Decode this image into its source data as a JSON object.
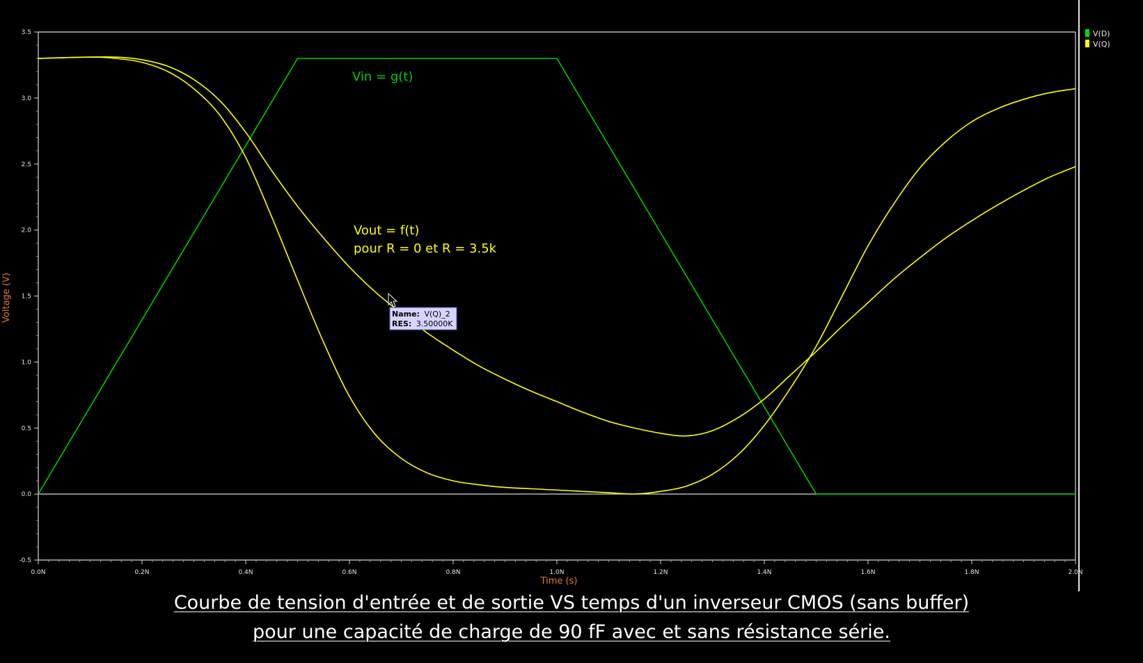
{
  "chart_data": {
    "type": "line",
    "xlabel": "Time (s)",
    "ylabel": "Voltage (V)",
    "xlim": [
      0,
      2.0
    ],
    "ylim": [
      -0.5,
      3.5
    ],
    "x_ticks": [
      {
        "v": 0.0,
        "label": "0.0N"
      },
      {
        "v": 0.2,
        "label": "0.2N"
      },
      {
        "v": 0.4,
        "label": "0.4N"
      },
      {
        "v": 0.6,
        "label": "0.6N"
      },
      {
        "v": 0.8,
        "label": "0.8N"
      },
      {
        "v": 1.0,
        "label": "1.0N"
      },
      {
        "v": 1.2,
        "label": "1.2N"
      },
      {
        "v": 1.4,
        "label": "1.4N"
      },
      {
        "v": 1.6,
        "label": "1.6N"
      },
      {
        "v": 1.8,
        "label": "1.8N"
      },
      {
        "v": 2.0,
        "label": "2.0N"
      }
    ],
    "y_ticks": [
      {
        "v": 3.5,
        "label": "3.5"
      },
      {
        "v": 3.0,
        "label": "3.0"
      },
      {
        "v": 2.5,
        "label": "2.5"
      },
      {
        "v": 2.0,
        "label": "2.0"
      },
      {
        "v": 1.5,
        "label": "1.5"
      },
      {
        "v": 1.0,
        "label": "1.0"
      },
      {
        "v": 0.5,
        "label": "0.5"
      },
      {
        "v": 0.0,
        "label": "0.0"
      },
      {
        "v": -0.5,
        "label": "-0.5"
      }
    ],
    "legend": [
      {
        "label": "V(D)",
        "color": "#00e000"
      },
      {
        "label": "V(Q)",
        "color": "#ffff00"
      }
    ],
    "legend_placement": "right",
    "series": [
      {
        "name": "V(D)",
        "color": "#00cc00",
        "x": [
          0.0,
          0.5,
          1.0,
          1.5,
          2.0
        ],
        "y": [
          0.0,
          3.3,
          3.3,
          0.0,
          0.0
        ]
      },
      {
        "name": "V(Q)",
        "color": "#ffff00",
        "x": [
          0.0,
          0.1,
          0.15,
          0.2,
          0.25,
          0.3,
          0.35,
          0.4,
          0.45,
          0.5,
          0.55,
          0.6,
          0.65,
          0.7,
          0.75,
          0.8,
          0.85,
          0.9,
          0.95,
          1.0,
          1.05,
          1.1,
          1.15,
          1.2,
          1.25,
          1.3,
          1.35,
          1.4,
          1.45,
          1.5,
          1.55,
          1.6,
          1.65,
          1.7,
          1.75,
          1.8,
          1.85,
          1.9,
          1.95,
          2.0
        ],
        "y": [
          3.3,
          3.31,
          3.3,
          3.27,
          3.2,
          3.07,
          2.87,
          2.55,
          2.1,
          1.62,
          1.15,
          0.74,
          0.45,
          0.27,
          0.16,
          0.1,
          0.07,
          0.05,
          0.04,
          0.03,
          0.02,
          0.01,
          0.0,
          0.02,
          0.06,
          0.15,
          0.3,
          0.52,
          0.8,
          1.12,
          1.5,
          1.88,
          2.2,
          2.47,
          2.67,
          2.82,
          2.92,
          2.99,
          3.04,
          3.07
        ]
      },
      {
        "name": "V(Q)_2",
        "color": "#ffff00",
        "x": [
          0.0,
          0.1,
          0.15,
          0.2,
          0.25,
          0.3,
          0.35,
          0.4,
          0.45,
          0.5,
          0.55,
          0.6,
          0.65,
          0.7,
          0.75,
          0.8,
          0.85,
          0.9,
          0.95,
          1.0,
          1.05,
          1.1,
          1.15,
          1.2,
          1.25,
          1.3,
          1.35,
          1.4,
          1.45,
          1.5,
          1.55,
          1.6,
          1.65,
          1.7,
          1.75,
          1.8,
          1.85,
          1.9,
          1.95,
          2.0
        ],
        "y": [
          3.3,
          3.31,
          3.31,
          3.29,
          3.24,
          3.14,
          2.98,
          2.74,
          2.45,
          2.18,
          1.94,
          1.72,
          1.53,
          1.37,
          1.22,
          1.09,
          0.97,
          0.87,
          0.78,
          0.7,
          0.62,
          0.55,
          0.5,
          0.46,
          0.44,
          0.48,
          0.58,
          0.72,
          0.9,
          1.08,
          1.27,
          1.45,
          1.63,
          1.79,
          1.94,
          2.07,
          2.19,
          2.3,
          2.4,
          2.48
        ]
      }
    ],
    "annotations": {
      "vin": "Vin = g(t)",
      "vout_line1": "Vout = f(t)",
      "vout_line2": "pour R = 0 et R = 3.5k"
    },
    "tooltip": {
      "name_key": "Name:",
      "name_value": "V(Q)_2",
      "res_key": "RES:",
      "res_value": "3.50000K"
    },
    "grid": false
  },
  "caption": {
    "line1": "Courbe de tension d'entrée et de sortie VS temps d'un inverseur CMOS (sans buffer)",
    "line2": "pour une capacité de charge de 90 fF avec et sans résistance série."
  },
  "colors": {
    "background": "#000000",
    "axis": "#d8d8d8",
    "axis_title": "#e07b32",
    "vin": "#00cc00",
    "vout": "#ffff00",
    "tooltip_bg": "#d6d4ff"
  }
}
